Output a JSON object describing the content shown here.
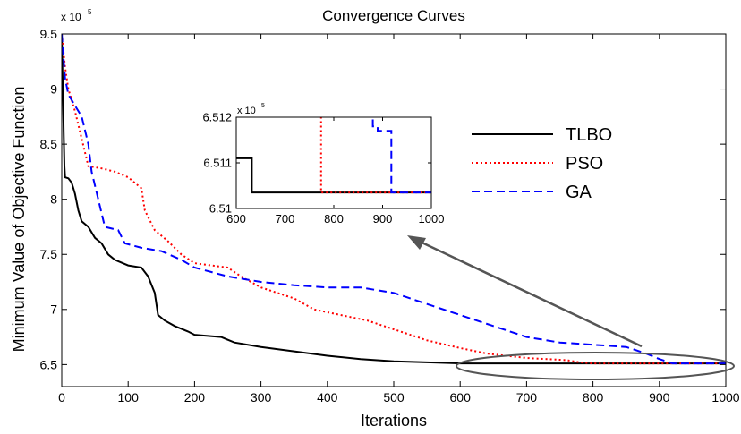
{
  "chart_data": [
    {
      "type": "line",
      "title": "Convergence Curves",
      "xlabel": "Iterations",
      "ylabel": "Minimum Value of Objective Function",
      "y_exponent_label": "x 10",
      "y_exponent_power": "5",
      "xlim": [
        0,
        1000
      ],
      "ylim": [
        6.3,
        9.5
      ],
      "xticks": [
        0,
        100,
        200,
        300,
        400,
        500,
        600,
        700,
        800,
        900,
        1000
      ],
      "yticks": [
        6.5,
        7,
        7.5,
        8,
        8.5,
        9,
        9.5
      ],
      "legend_position": "right",
      "legend": [
        "TLBO",
        "PSO",
        "GA"
      ],
      "series": [
        {
          "name": "TLBO",
          "color": "#000000",
          "style": "solid",
          "points": [
            [
              0,
              9.5
            ],
            [
              1,
              9.2
            ],
            [
              2,
              8.9
            ],
            [
              3,
              8.6
            ],
            [
              4,
              8.3
            ],
            [
              5,
              8.2
            ],
            [
              10,
              8.19
            ],
            [
              15,
              8.15
            ],
            [
              20,
              8.05
            ],
            [
              25,
              7.9
            ],
            [
              30,
              7.8
            ],
            [
              40,
              7.75
            ],
            [
              50,
              7.65
            ],
            [
              60,
              7.6
            ],
            [
              70,
              7.5
            ],
            [
              80,
              7.45
            ],
            [
              100,
              7.4
            ],
            [
              120,
              7.38
            ],
            [
              130,
              7.3
            ],
            [
              140,
              7.15
            ],
            [
              145,
              6.95
            ],
            [
              155,
              6.9
            ],
            [
              170,
              6.85
            ],
            [
              190,
              6.8
            ],
            [
              200,
              6.77
            ],
            [
              240,
              6.75
            ],
            [
              260,
              6.7
            ],
            [
              300,
              6.66
            ],
            [
              350,
              6.62
            ],
            [
              400,
              6.58
            ],
            [
              450,
              6.55
            ],
            [
              500,
              6.53
            ],
            [
              550,
              6.52
            ],
            [
              600,
              6.51
            ],
            [
              630,
              6.5104
            ],
            [
              1000,
              6.5104
            ]
          ]
        },
        {
          "name": "PSO",
          "color": "#ff0000",
          "style": "dotted",
          "points": [
            [
              0,
              9.5
            ],
            [
              5,
              9.2
            ],
            [
              10,
              9.0
            ],
            [
              20,
              8.8
            ],
            [
              30,
              8.55
            ],
            [
              40,
              8.3
            ],
            [
              60,
              8.28
            ],
            [
              80,
              8.25
            ],
            [
              100,
              8.2
            ],
            [
              120,
              8.1
            ],
            [
              125,
              7.9
            ],
            [
              140,
              7.72
            ],
            [
              160,
              7.62
            ],
            [
              180,
              7.5
            ],
            [
              200,
              7.42
            ],
            [
              250,
              7.38
            ],
            [
              270,
              7.3
            ],
            [
              300,
              7.2
            ],
            [
              350,
              7.1
            ],
            [
              380,
              7.0
            ],
            [
              420,
              6.95
            ],
            [
              460,
              6.9
            ],
            [
              500,
              6.82
            ],
            [
              550,
              6.72
            ],
            [
              600,
              6.65
            ],
            [
              640,
              6.6
            ],
            [
              700,
              6.56
            ],
            [
              760,
              6.54
            ],
            [
              780,
              6.52
            ],
            [
              800,
              6.5104
            ],
            [
              1000,
              6.5104
            ]
          ]
        },
        {
          "name": "GA",
          "color": "#0000ff",
          "style": "dashed",
          "points": [
            [
              0,
              9.5
            ],
            [
              5,
              9.1
            ],
            [
              10,
              8.95
            ],
            [
              20,
              8.85
            ],
            [
              30,
              8.75
            ],
            [
              40,
              8.5
            ],
            [
              45,
              8.25
            ],
            [
              55,
              8.0
            ],
            [
              65,
              7.75
            ],
            [
              85,
              7.72
            ],
            [
              95,
              7.6
            ],
            [
              120,
              7.56
            ],
            [
              150,
              7.53
            ],
            [
              180,
              7.45
            ],
            [
              200,
              7.38
            ],
            [
              250,
              7.3
            ],
            [
              300,
              7.25
            ],
            [
              350,
              7.22
            ],
            [
              400,
              7.2
            ],
            [
              450,
              7.2
            ],
            [
              500,
              7.15
            ],
            [
              550,
              7.05
            ],
            [
              600,
              6.95
            ],
            [
              650,
              6.85
            ],
            [
              700,
              6.75
            ],
            [
              750,
              6.7
            ],
            [
              800,
              6.68
            ],
            [
              850,
              6.66
            ],
            [
              880,
              6.6
            ],
            [
              900,
              6.55
            ],
            [
              920,
              6.5104
            ],
            [
              1000,
              6.5104
            ]
          ]
        }
      ]
    },
    {
      "type": "line",
      "title": "",
      "y_exponent_label": "x 10",
      "y_exponent_power": "5",
      "xlim": [
        600,
        1000
      ],
      "ylim": [
        6.51,
        6.512
      ],
      "xticks": [
        600,
        700,
        800,
        900,
        1000
      ],
      "yticks": [
        6.51,
        6.511,
        6.512
      ],
      "ytick_labels": [
        "6.51",
        "6.511",
        "6.512"
      ],
      "series": [
        {
          "name": "TLBO",
          "color": "#000000",
          "style": "solid",
          "points": [
            [
              600,
              6.5111
            ],
            [
              632,
              6.5111
            ],
            [
              632,
              6.51035
            ],
            [
              1000,
              6.51035
            ]
          ]
        },
        {
          "name": "PSO",
          "color": "#ff0000",
          "style": "dotted",
          "points": [
            [
              774,
              6.5125
            ],
            [
              774,
              6.51035
            ],
            [
              1000,
              6.51035
            ]
          ]
        },
        {
          "name": "GA",
          "color": "#0000ff",
          "style": "dashed",
          "points": [
            [
              880,
              6.5125
            ],
            [
              880,
              6.5118
            ],
            [
              890,
              6.5118
            ],
            [
              890,
              6.5117
            ],
            [
              918,
              6.5117
            ],
            [
              918,
              6.51035
            ],
            [
              1000,
              6.51035
            ]
          ]
        }
      ]
    }
  ]
}
